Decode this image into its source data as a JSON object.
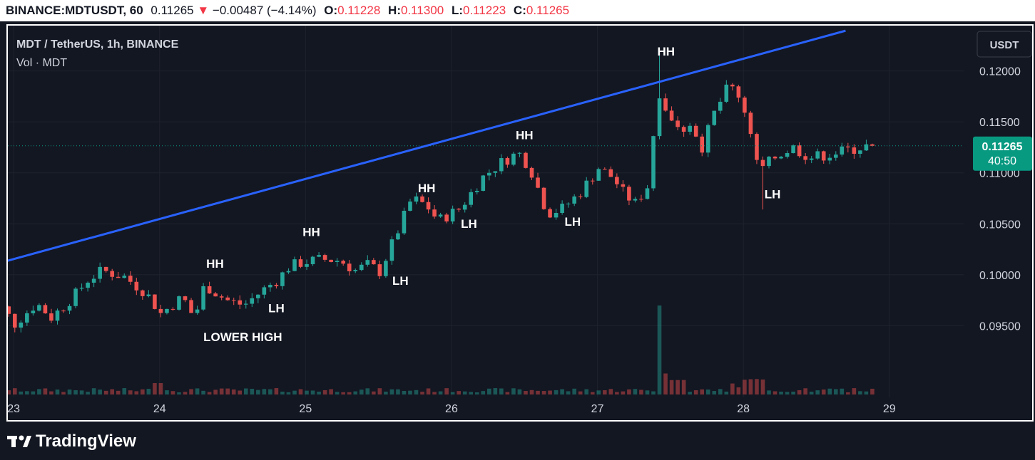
{
  "header": {
    "symbol": "BINANCE:MDTUSDT, 60",
    "last": "0.11265",
    "change_arrow": "▼",
    "change": "−0.00487 (−4.14%)",
    "open_label": "O:",
    "open": "0.11228",
    "high_label": "H:",
    "high": "0.11300",
    "low_label": "L:",
    "low": "0.11223",
    "close_label": "C:",
    "close": "0.11265"
  },
  "legend": {
    "title": "MDT / TetherUS, 1h, BINANCE",
    "volume": "Vol · MDT"
  },
  "currency_button": "USDT",
  "price_tag": {
    "value": "0.11265",
    "countdown": "40:50",
    "color": "#089981"
  },
  "branding": "TradingView",
  "colors": {
    "up": "#26a69a",
    "down": "#ef5350",
    "trendline": "#2962ff",
    "bg": "#131722"
  },
  "chart_data": {
    "type": "candlestick",
    "y_ticks": [
      "0.12000",
      "0.11500",
      "0.11000",
      "0.10500",
      "0.10000",
      "0.09500"
    ],
    "ylim": [
      0.0902,
      0.1234
    ],
    "x_ticks": [
      "23",
      "24",
      "25",
      "26",
      "27",
      "28",
      "29"
    ],
    "x_tick_days": [
      23,
      24,
      25,
      26,
      27,
      28,
      29
    ],
    "xlim": [
      22.98,
      29.04
    ],
    "last_price": 0.11265,
    "trendline": {
      "x": [
        22.8,
        28.7
      ],
      "y": [
        0.10075,
        0.12395
      ]
    },
    "annotations": [
      {
        "text": "HH",
        "x": 24.38,
        "y": 0.1007
      },
      {
        "text": "HH",
        "x": 25.04,
        "y": 0.1038
      },
      {
        "text": "HH",
        "x": 25.83,
        "y": 0.1081
      },
      {
        "text": "HH",
        "x": 26.5,
        "y": 0.1133
      },
      {
        "text": "HH",
        "x": 27.47,
        "y": 0.1215
      },
      {
        "text": "LH",
        "x": 24.8,
        "y": 0.0963
      },
      {
        "text": "LH",
        "x": 25.65,
        "y": 0.099
      },
      {
        "text": "LH",
        "x": 26.12,
        "y": 0.1046
      },
      {
        "text": "LH",
        "x": 26.83,
        "y": 0.1048
      },
      {
        "text": "LH",
        "x": 28.2,
        "y": 0.1075
      },
      {
        "text": "LOWER HIGH",
        "x": 24.57,
        "y": 0.0935
      }
    ],
    "anchors": [
      [
        22.8,
        0.0975
      ],
      [
        22.95,
        0.097
      ],
      [
        23.05,
        0.0952
      ],
      [
        23.2,
        0.0972
      ],
      [
        23.3,
        0.0958
      ],
      [
        23.45,
        0.0978
      ],
      [
        23.55,
        0.0995
      ],
      [
        23.65,
        0.1004
      ],
      [
        23.8,
        0.0998
      ],
      [
        23.95,
        0.0982
      ],
      [
        24.05,
        0.0962
      ],
      [
        24.2,
        0.0978
      ],
      [
        24.28,
        0.0957
      ],
      [
        24.35,
        0.099
      ],
      [
        24.5,
        0.0975
      ],
      [
        24.62,
        0.097
      ],
      [
        24.75,
        0.0985
      ],
      [
        24.85,
        0.0995
      ],
      [
        24.93,
        0.1008
      ],
      [
        25.02,
        0.1012
      ],
      [
        25.15,
        0.1015
      ],
      [
        25.28,
        0.1014
      ],
      [
        25.38,
        0.1004
      ],
      [
        25.47,
        0.101
      ],
      [
        25.55,
        0.1003
      ],
      [
        25.65,
        0.1035
      ],
      [
        25.77,
        0.1075
      ],
      [
        25.87,
        0.1068
      ],
      [
        25.95,
        0.1053
      ],
      [
        26.1,
        0.1065
      ],
      [
        26.25,
        0.1095
      ],
      [
        26.38,
        0.111
      ],
      [
        26.5,
        0.112
      ],
      [
        26.58,
        0.1105
      ],
      [
        26.7,
        0.106
      ],
      [
        26.8,
        0.1065
      ],
      [
        26.92,
        0.108
      ],
      [
        27.05,
        0.1105
      ],
      [
        27.15,
        0.1095
      ],
      [
        27.22,
        0.108
      ],
      [
        27.3,
        0.107
      ],
      [
        27.4,
        0.109
      ],
      [
        27.45,
        0.1185
      ],
      [
        27.52,
        0.116
      ],
      [
        27.6,
        0.114
      ],
      [
        27.68,
        0.115
      ],
      [
        27.76,
        0.1125
      ],
      [
        27.84,
        0.1158
      ],
      [
        27.94,
        0.1185
      ],
      [
        28.0,
        0.118
      ],
      [
        28.08,
        0.115
      ],
      [
        28.15,
        0.11
      ],
      [
        28.25,
        0.1115
      ],
      [
        28.38,
        0.1125
      ],
      [
        28.5,
        0.1115
      ],
      [
        28.62,
        0.1118
      ],
      [
        28.75,
        0.1122
      ],
      [
        28.88,
        0.1126
      ]
    ],
    "volume_max": 1.0,
    "volume_baseline": 0.08
  }
}
